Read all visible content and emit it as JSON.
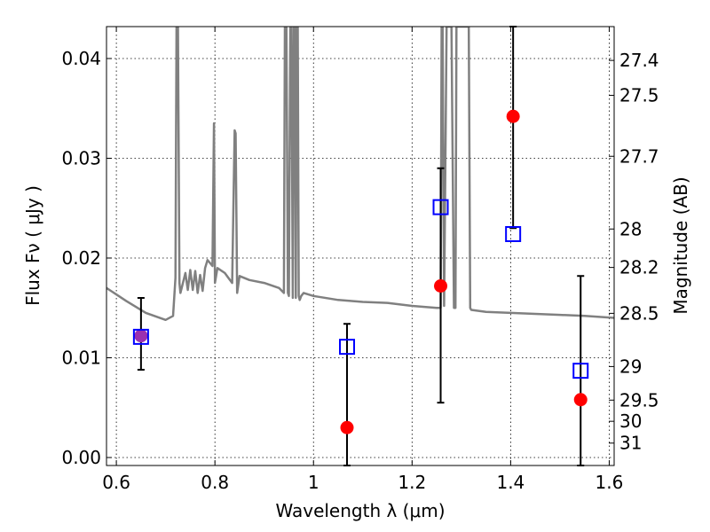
{
  "chart_data": {
    "type": "scatter",
    "title": "",
    "xlabel": "Wavelength  λ (μm)",
    "ylabel": "Flux  Fν  ( μJy )",
    "ylabel_right": "Magnitude (AB)",
    "xlim": [
      0.58,
      1.61
    ],
    "ylim": [
      -0.0008,
      0.0432
    ],
    "grid": true,
    "x_ticks": [
      {
        "value": 0.6,
        "label": "0.6"
      },
      {
        "value": 0.8,
        "label": "0.8"
      },
      {
        "value": 1.0,
        "label": "1"
      },
      {
        "value": 1.2,
        "label": "1.2"
      },
      {
        "value": 1.4,
        "label": "1.4"
      },
      {
        "value": 1.6,
        "label": "1.6"
      }
    ],
    "y_ticks": [
      {
        "value": 0.0,
        "label": "0.00"
      },
      {
        "value": 0.01,
        "label": "0.01"
      },
      {
        "value": 0.02,
        "label": "0.02"
      },
      {
        "value": 0.03,
        "label": "0.03"
      },
      {
        "value": 0.04,
        "label": "0.04"
      }
    ],
    "right_ticks": [
      {
        "value": 27.4,
        "label": "27.4"
      },
      {
        "value": 27.5,
        "label": "27.5"
      },
      {
        "value": 27.7,
        "label": "27.7"
      },
      {
        "value": 28.0,
        "label": "28"
      },
      {
        "value": 28.2,
        "label": "28.2"
      },
      {
        "value": 28.5,
        "label": "28.5"
      },
      {
        "value": 29.0,
        "label": "29"
      },
      {
        "value": 29.5,
        "label": "29.5"
      },
      {
        "value": 30.0,
        "label": "30"
      },
      {
        "value": 31.0,
        "label": "31"
      }
    ],
    "model_spectrum": {
      "color": "#808080",
      "x": [
        0.58,
        0.62,
        0.66,
        0.7,
        0.715,
        0.72,
        0.722,
        0.725,
        0.728,
        0.73,
        0.74,
        0.745,
        0.75,
        0.755,
        0.76,
        0.765,
        0.77,
        0.775,
        0.78,
        0.785,
        0.79,
        0.795,
        0.798,
        0.8,
        0.805,
        0.82,
        0.835,
        0.84,
        0.842,
        0.845,
        0.85,
        0.87,
        0.9,
        0.93,
        0.94,
        0.942,
        0.945,
        0.948,
        0.95,
        0.953,
        0.955,
        0.958,
        0.96,
        0.962,
        0.964,
        0.966,
        0.968,
        0.97,
        0.972,
        0.975,
        0.98,
        1.0,
        1.05,
        1.1,
        1.15,
        1.2,
        1.25,
        1.258,
        1.26,
        1.262,
        1.265,
        1.27,
        1.28,
        1.285,
        1.288,
        1.29,
        1.292,
        1.3,
        1.31,
        1.315,
        1.318,
        1.32,
        1.35,
        1.4,
        1.45,
        1.5,
        1.55,
        1.61
      ],
      "y": [
        0.017,
        0.0157,
        0.0145,
        0.0138,
        0.0142,
        0.018,
        0.0432,
        0.0432,
        0.0175,
        0.0165,
        0.0185,
        0.0168,
        0.0188,
        0.0168,
        0.0187,
        0.0165,
        0.0183,
        0.0167,
        0.019,
        0.0198,
        0.0195,
        0.0192,
        0.0335,
        0.0175,
        0.019,
        0.0185,
        0.0175,
        0.0328,
        0.0325,
        0.0165,
        0.0182,
        0.0178,
        0.0175,
        0.017,
        0.0165,
        0.0432,
        0.0432,
        0.0165,
        0.0162,
        0.0432,
        0.0432,
        0.016,
        0.0432,
        0.0432,
        0.016,
        0.0432,
        0.0432,
        0.0162,
        0.0158,
        0.0162,
        0.0165,
        0.0162,
        0.0158,
        0.0156,
        0.0155,
        0.0152,
        0.015,
        0.015,
        0.0432,
        0.0432,
        0.0152,
        0.0432,
        0.0432,
        0.015,
        0.015,
        0.0432,
        0.0432,
        0.0432,
        0.0432,
        0.0432,
        0.015,
        0.0148,
        0.0146,
        0.0145,
        0.0144,
        0.0143,
        0.0142,
        0.014
      ]
    },
    "series": [
      {
        "marker": "open-square",
        "color": "#0000ff",
        "points": [
          {
            "x": 0.65,
            "y": 0.0121,
            "err_lo": 0.0088,
            "err_hi": 0.016
          },
          {
            "x": 1.068,
            "y": 0.0111,
            "err_lo": -0.0008,
            "err_hi": 0.0134
          },
          {
            "x": 1.258,
            "y": 0.0251,
            "err_lo": 0.0055,
            "err_hi": 0.029
          },
          {
            "x": 1.405,
            "y": 0.0224,
            "err_lo": 0.023,
            "err_hi": 0.0432
          },
          {
            "x": 1.542,
            "y": 0.0087,
            "err_lo": -0.0008,
            "err_hi": 0.0182
          }
        ]
      },
      {
        "marker": "filled-circle",
        "color": "#ff0000",
        "points": [
          {
            "x": 0.65,
            "y": 0.0122,
            "color": "#9b30b0"
          },
          {
            "x": 1.068,
            "y": 0.003
          },
          {
            "x": 1.258,
            "y": 0.0172
          },
          {
            "x": 1.405,
            "y": 0.0342
          },
          {
            "x": 1.542,
            "y": 0.0058
          }
        ]
      }
    ]
  }
}
